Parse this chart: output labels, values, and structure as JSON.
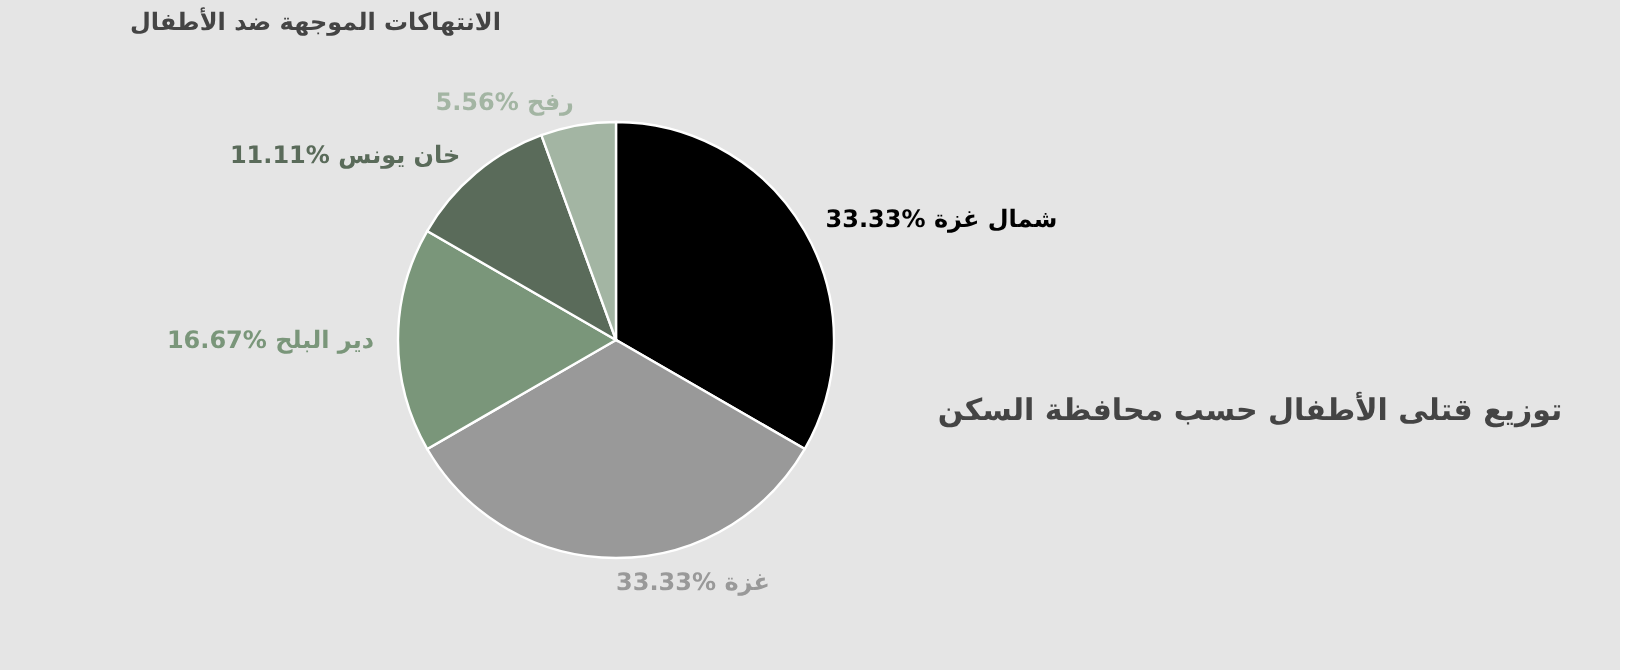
{
  "chart_data": {
    "type": "pie",
    "title": "الانتهاكات الموجهة ضد الأطفال",
    "annotations": [
      "توزيع قتلى الأطفال حسب محافظة السكن"
    ],
    "categories": [
      "شمال غزة",
      "غزة",
      "دير البلح",
      "خان يونس",
      "رفح"
    ],
    "values": [
      33.33,
      33.33,
      16.67,
      11.11,
      5.56
    ],
    "value_labels": [
      "33.33%",
      "33.33%",
      "16.67%",
      "11.11%",
      "5.56%"
    ],
    "colors": [
      "#000000",
      "#999999",
      "#7a967a",
      "#5a6b5a",
      "#a3b5a3"
    ],
    "legend": false
  }
}
